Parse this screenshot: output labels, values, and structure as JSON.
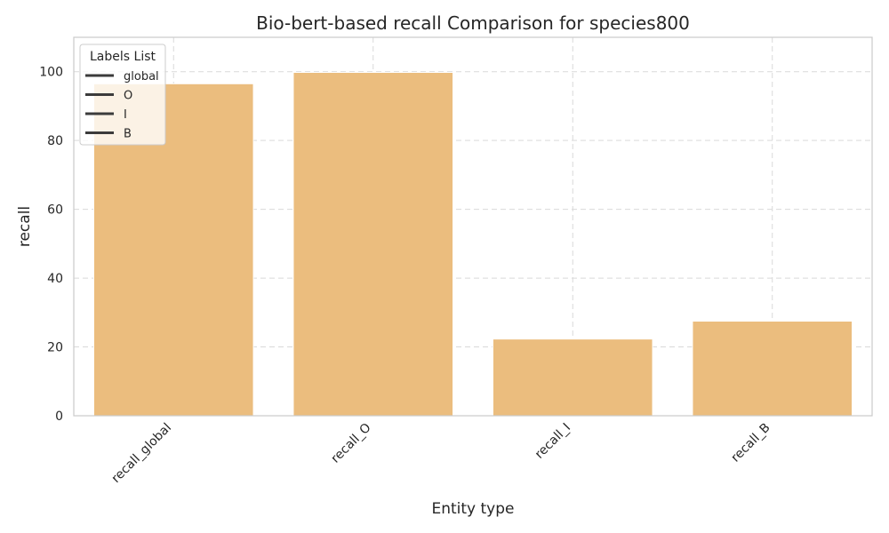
{
  "chart_data": {
    "type": "bar",
    "title": "Bio-bert-based  recall Comparison for species800",
    "xlabel": "Entity type",
    "ylabel": "recall",
    "categories": [
      "recall_global",
      "recall_O",
      "recall_I",
      "recall_B"
    ],
    "values": [
      96.5,
      99.8,
      22.3,
      27.5
    ],
    "ylim": [
      0,
      110
    ],
    "yticks": [
      0,
      20,
      40,
      60,
      80,
      100
    ],
    "grid": true,
    "bar_color": "#ebbd7e",
    "legend": {
      "title": "Labels List",
      "placement": "top-left",
      "entries": [
        "global",
        "O",
        "I",
        "B"
      ],
      "line_color": "#3b3b3b"
    }
  }
}
